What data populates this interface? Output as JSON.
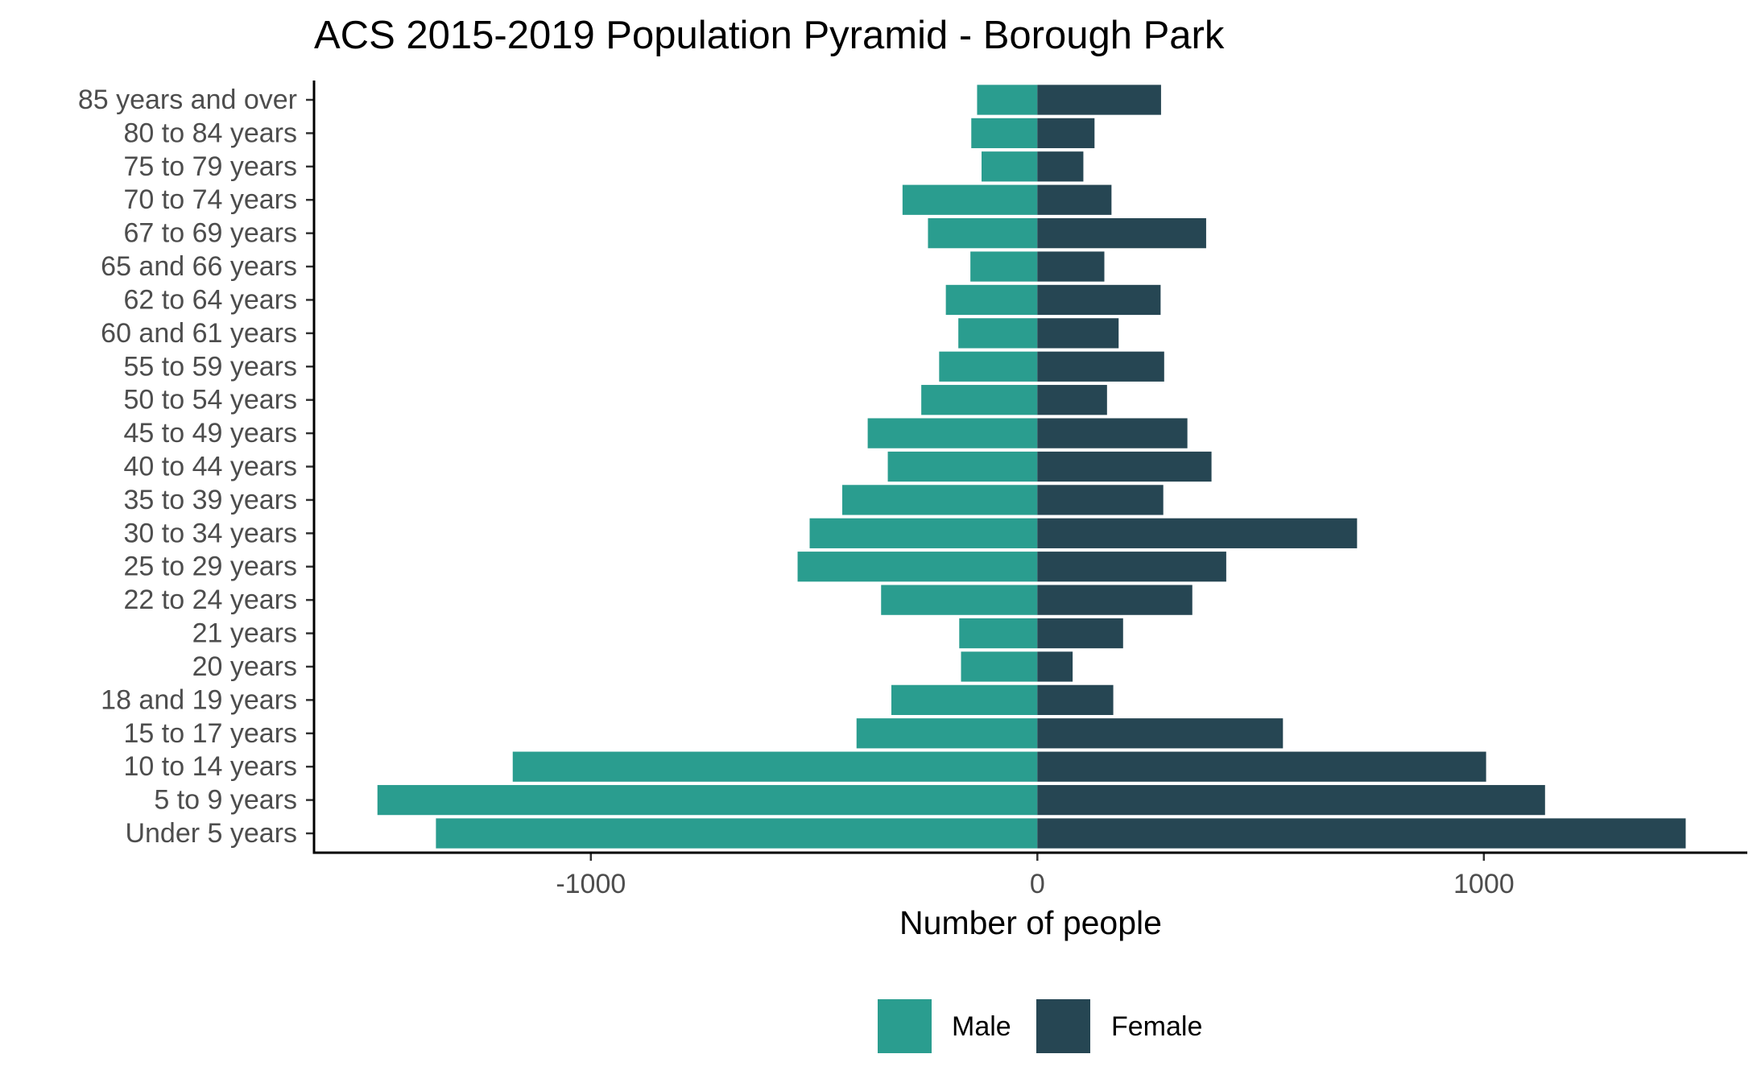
{
  "chart_data": {
    "type": "bar",
    "orientation": "horizontal",
    "title": "ACS 2015-2019 Population Pyramid - Borough Park",
    "xlabel": "Number of people",
    "ylabel": "",
    "categories": [
      "85 years and over",
      "80 to 84 years",
      "75 to 79 years",
      "70 to 74 years",
      "67 to 69 years",
      "65 and 66 years",
      "62 to 64 years",
      "60 and 61 years",
      "55 to 59 years",
      "50 to 54 years",
      "45 to 49 years",
      "40 to 44 years",
      "35 to 39 years",
      "30 to 34 years",
      "25 to 29 years",
      "22 to 24 years",
      "21 years",
      "20 years",
      "18 and 19 years",
      "15 to 17 years",
      "10 to 14 years",
      "5 to 9 years",
      "Under 5 years"
    ],
    "series": [
      {
        "name": "Male",
        "color": "#2a9d8f",
        "values": [
          -135,
          -148,
          -125,
          -302,
          -245,
          -150,
          -205,
          -177,
          -220,
          -260,
          -380,
          -335,
          -437,
          -510,
          -537,
          -350,
          -175,
          -171,
          -327,
          -405,
          -1175,
          -1478,
          -1347
        ]
      },
      {
        "name": "Female",
        "color": "#264653",
        "values": [
          277,
          128,
          103,
          166,
          378,
          150,
          276,
          182,
          284,
          156,
          336,
          390,
          282,
          716,
          423,
          347,
          192,
          79,
          170,
          550,
          1005,
          1137,
          1452
        ]
      }
    ],
    "xlim": [
      -1620,
      1590
    ],
    "xticks": [
      -1000,
      0,
      1000
    ],
    "xtick_labels": [
      "-1000",
      "0",
      "1000"
    ],
    "grid": false,
    "legend_position": "bottom"
  }
}
